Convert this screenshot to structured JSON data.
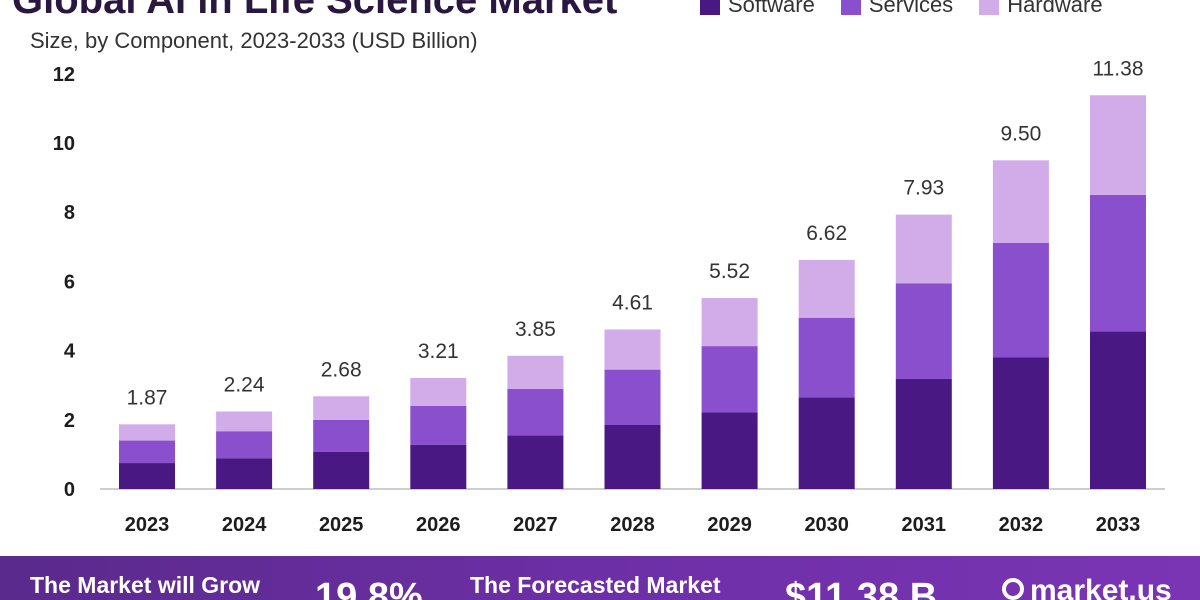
{
  "title": "Global AI in Life Science Market",
  "subtitle": "Size, by Component, 2023-2033 (USD Billion)",
  "legend": [
    {
      "name": "Software",
      "color": "#4a1882"
    },
    {
      "name": "Services",
      "color": "#8a4fcd"
    },
    {
      "name": "Hardware",
      "color": "#d2abe9"
    }
  ],
  "chart_data": {
    "type": "bar",
    "stacked": true,
    "categories": [
      "2023",
      "2024",
      "2025",
      "2026",
      "2027",
      "2028",
      "2029",
      "2030",
      "2031",
      "2032",
      "2033"
    ],
    "series": [
      {
        "name": "Software",
        "color": "#4a1882",
        "values": [
          0.75,
          0.89,
          1.07,
          1.28,
          1.55,
          1.85,
          2.21,
          2.65,
          3.18,
          3.81,
          4.55
        ]
      },
      {
        "name": "Services",
        "color": "#8a4fcd",
        "values": [
          0.65,
          0.78,
          0.93,
          1.12,
          1.34,
          1.6,
          1.92,
          2.3,
          2.76,
          3.3,
          3.95
        ]
      },
      {
        "name": "Hardware",
        "color": "#d2abe9",
        "values": [
          0.47,
          0.57,
          0.68,
          0.81,
          0.96,
          1.16,
          1.39,
          1.67,
          1.99,
          2.39,
          2.88
        ]
      }
    ],
    "totals": [
      "1.87",
      "2.24",
      "2.68",
      "3.21",
      "3.85",
      "4.61",
      "5.52",
      "6.62",
      "7.93",
      "9.50",
      "11.38"
    ],
    "yticks": [
      0,
      2,
      4,
      6,
      8,
      10,
      12
    ],
    "ylim": [
      0,
      12
    ],
    "xlabel": "",
    "ylabel": "",
    "grid": false,
    "legend_position": "top-right"
  },
  "banner": {
    "grow_label": "The Market will Grow",
    "cagr_value": "19.8%",
    "forecast_label": "The Forecasted Market",
    "forecast_value": "$11.38 B",
    "brand": "market.us"
  }
}
